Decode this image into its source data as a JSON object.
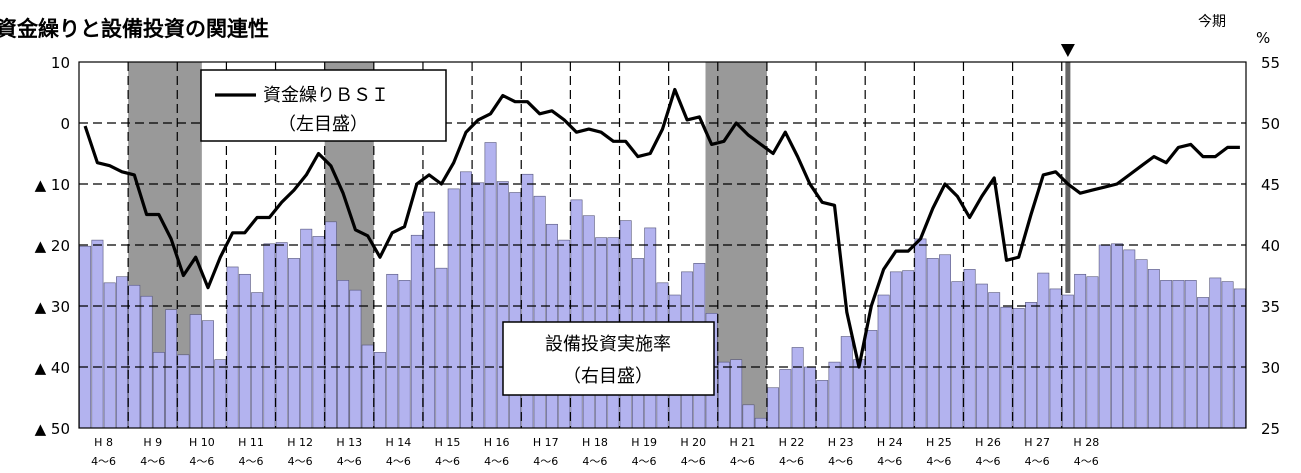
{
  "chart_data": {
    "type": "bar+line",
    "title": "資金繰りと設備投資の関連性",
    "right_unit": "%",
    "now_label": "今期",
    "left_axis": {
      "min": -50,
      "max": 10,
      "ticks": [
        10,
        0,
        -10,
        -20,
        -30,
        -40,
        -50
      ],
      "tick_labels": [
        "10",
        "0",
        "▲ 10",
        "▲ 20",
        "▲ 30",
        "▲ 40",
        "▲ 50"
      ]
    },
    "right_axis": {
      "min": 25,
      "max": 55,
      "ticks": [
        55,
        50,
        45,
        40,
        35,
        30,
        25
      ],
      "tick_labels": [
        "55",
        "50",
        "45",
        "40",
        "35",
        "30",
        "25"
      ]
    },
    "x_start_year": "H 8 4～6",
    "x_tick_labels": [
      {
        "year": "H 8",
        "q": "4～6"
      },
      {
        "year": "H 9",
        "q": "4～6"
      },
      {
        "year": "H 10",
        "q": "4～6"
      },
      {
        "year": "H 11",
        "q": "4～6"
      },
      {
        "year": "H 12",
        "q": "4～6"
      },
      {
        "year": "H 13",
        "q": "4～6"
      },
      {
        "year": "H 14",
        "q": "4～6"
      },
      {
        "year": "H 15",
        "q": "4～6"
      },
      {
        "year": "H 16",
        "q": "4～6"
      },
      {
        "year": "H 17",
        "q": "4～6"
      },
      {
        "year": "H 18",
        "q": "4～6"
      },
      {
        "year": "H 19",
        "q": "4～6"
      },
      {
        "year": "H 20",
        "q": "4～6"
      },
      {
        "year": "H 21",
        "q": "4～6"
      },
      {
        "year": "H 22",
        "q": "4～6"
      },
      {
        "year": "H 23",
        "q": "4～6"
      },
      {
        "year": "H 24",
        "q": "4～6"
      },
      {
        "year": "H 25",
        "q": "4～6"
      },
      {
        "year": "H 26",
        "q": "4～6"
      },
      {
        "year": "H 27",
        "q": "4～6"
      },
      {
        "year": "H 28",
        "q": "4～6"
      }
    ],
    "recession_bands_quarters": [
      [
        4,
        10
      ],
      [
        20,
        24
      ],
      [
        51,
        56
      ]
    ],
    "now_quarter": 80,
    "series": [
      {
        "name": "設備投資実施率",
        "axis": "right",
        "kind": "bar",
        "color": "#b3b3ef",
        "values": [
          39.9,
          40.4,
          36.9,
          37.4,
          36.7,
          35.8,
          31.2,
          34.7,
          31.0,
          34.3,
          33.8,
          30.6,
          38.2,
          37.6,
          36.1,
          40.1,
          40.2,
          38.9,
          41.3,
          40.7,
          41.9,
          37.1,
          36.3,
          31.8,
          31.2,
          37.6,
          37.1,
          40.8,
          42.7,
          38.1,
          44.6,
          46.0,
          45.1,
          48.4,
          45.2,
          44.3,
          45.8,
          44.0,
          41.7,
          40.4,
          43.7,
          42.4,
          40.6,
          40.6,
          42.0,
          38.9,
          41.4,
          36.9,
          35.9,
          37.8,
          38.5,
          34.4,
          30.4,
          30.6,
          26.9,
          25.8,
          28.3,
          29.8,
          31.6,
          30.0,
          28.9,
          30.4,
          32.5,
          30.6,
          33.0,
          35.9,
          37.8,
          37.9,
          40.5,
          38.9,
          39.2,
          37.0,
          38.0,
          36.8,
          36.1,
          34.9,
          34.8,
          35.3,
          37.7,
          36.4,
          35.9,
          37.6,
          37.4,
          40.0,
          40.1,
          39.6,
          38.8,
          38.0,
          37.1,
          37.1,
          37.1,
          35.7,
          37.3,
          37.0,
          36.4
        ]
      },
      {
        "name": "資金繰りＢＳＩ",
        "axis": "left",
        "kind": "line",
        "color": "#000000",
        "values": [
          -0.5,
          -6.5,
          -7.0,
          -8.0,
          -8.5,
          -15.0,
          -15.0,
          -19.0,
          -25.0,
          -22.0,
          -27.0,
          -22.0,
          -18.0,
          -18.0,
          -15.5,
          -15.5,
          -13.0,
          -11.0,
          -8.5,
          -5.0,
          -7.0,
          -11.5,
          -17.5,
          -18.5,
          -22.0,
          -18.0,
          -17.0,
          -10.0,
          -8.5,
          -10.0,
          -6.5,
          -1.5,
          0.5,
          1.5,
          4.5,
          3.5,
          3.5,
          1.5,
          2.0,
          0.5,
          -1.5,
          -1.0,
          -1.5,
          -3.0,
          -3.0,
          -5.5,
          -5.0,
          -1.0,
          5.5,
          0.5,
          1.0,
          -3.5,
          -3.0,
          0.0,
          -2.0,
          -3.5,
          -5.0,
          -1.5,
          -5.5,
          -10.0,
          -13.0,
          -13.5,
          -31.0,
          -40.0,
          -30.0,
          -24.0,
          -21.0,
          -21.0,
          -19.0,
          -14.0,
          -10.0,
          -12.0,
          -15.5,
          -12.0,
          -9.0,
          -22.5,
          -22.0,
          -15.0,
          -8.5,
          -8.0,
          -10.0,
          -11.5,
          -11.0,
          -10.5,
          -10.0,
          -8.5,
          -7.0,
          -5.5,
          -6.5,
          -4.0,
          -3.5,
          -5.5,
          -5.5,
          -4.0,
          -4.0
        ]
      }
    ],
    "legend_boxes": [
      {
        "text": "資金繰りＢＳＩ",
        "sub": "（左目盛）"
      },
      {
        "text": "設備投資実施率",
        "sub": "（右目盛）"
      }
    ]
  }
}
